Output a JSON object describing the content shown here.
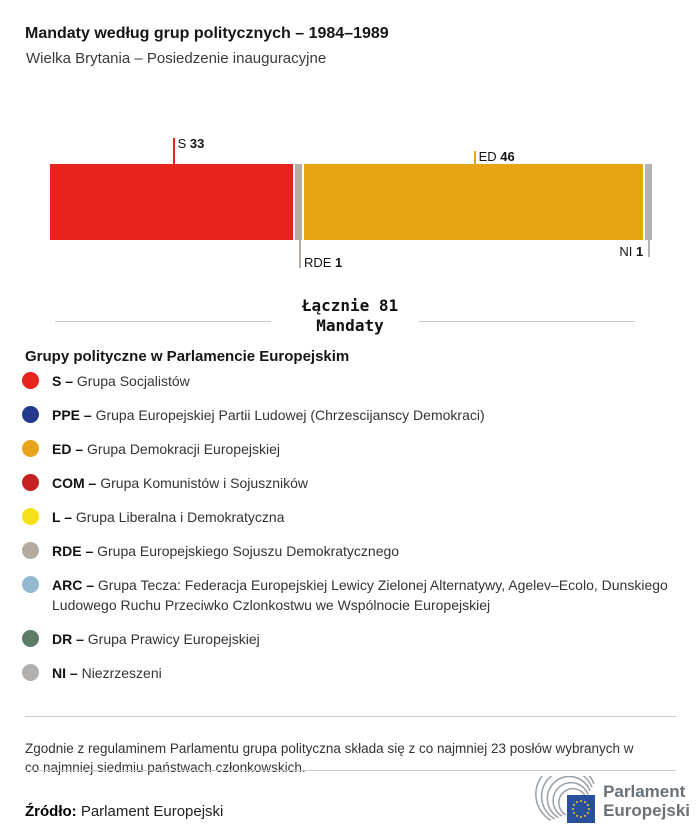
{
  "header": {
    "title": "Mandaty według grup politycznych – 1984–1989",
    "subtitle": "Wielka Brytania – Posiedzenie inauguracyjne"
  },
  "chart_data": {
    "type": "bar",
    "stacked": true,
    "orientation": "horizontal",
    "total_seats": 81,
    "total_line1": "Łącznie 81",
    "total_line2": "Mandaty",
    "categories": [
      "S",
      "RDE",
      "ED",
      "NI"
    ],
    "values": [
      33,
      1,
      46,
      1
    ],
    "series": [
      {
        "code": "S",
        "seats": 33,
        "color": "#e8231e",
        "label_side": "top",
        "tick_len": 26
      },
      {
        "code": "RDE",
        "seats": 1,
        "color": "#b6aea3",
        "label_side": "bottom",
        "tick_len": 28
      },
      {
        "code": "ED",
        "seats": 46,
        "color": "#e7a413",
        "label_side": "top",
        "tick_len": 13
      },
      {
        "code": "NI",
        "seats": 1,
        "color": "#b3b3b3",
        "label_side": "bottom",
        "tick_len": 17,
        "label_align": "left"
      }
    ]
  },
  "legend": {
    "heading": "Grupy polityczne w Parlamencie Europejskim",
    "items": [
      {
        "code": "S",
        "color": "#e8231e",
        "name": "Grupa Socjalistów"
      },
      {
        "code": "PPE",
        "color": "#233a8c",
        "name": "Grupa Europejskiej Partii Ludowej (Chrzescijanscy Demokraci)"
      },
      {
        "code": "ED",
        "color": "#e8a41c",
        "name": "Grupa Demokracji Europejskiej"
      },
      {
        "code": "COM",
        "color": "#c62222",
        "name": "Grupa Komunistów i Sojuszników"
      },
      {
        "code": "L",
        "color": "#f6e017",
        "name": "Grupa Liberalna i Demokratyczna"
      },
      {
        "code": "RDE",
        "color": "#b4aca1",
        "name": "Grupa Europejskiego Sojuszu Demokratycznego"
      },
      {
        "code": "ARC",
        "color": "#93b9d1",
        "name": "Grupa Tecza: Federacja Europejskiej Lewicy Zielonej Alternatywy, Agelev–Ecolo, Dunskiego Ludowego Ruchu Przeciwko Czlonkostwu we Wspólnocie Europejskiej"
      },
      {
        "code": "DR",
        "color": "#5d7c68",
        "name": "Grupa Prawicy Europejskiej"
      },
      {
        "code": "NI",
        "color": "#b1b0ae",
        "name": "Niezrzeszeni"
      }
    ]
  },
  "footer": {
    "note": "Zgodnie z regulaminem Parlamentu grupa polityczna składa się z co najmniej 23 posłów wybranych w co najmniej siedmiu państwach członkowskich.",
    "source_label": "Źródło:",
    "source_value": "Parlament Europejski",
    "logo_line1": "Parlament",
    "logo_line2": "Europejski"
  }
}
